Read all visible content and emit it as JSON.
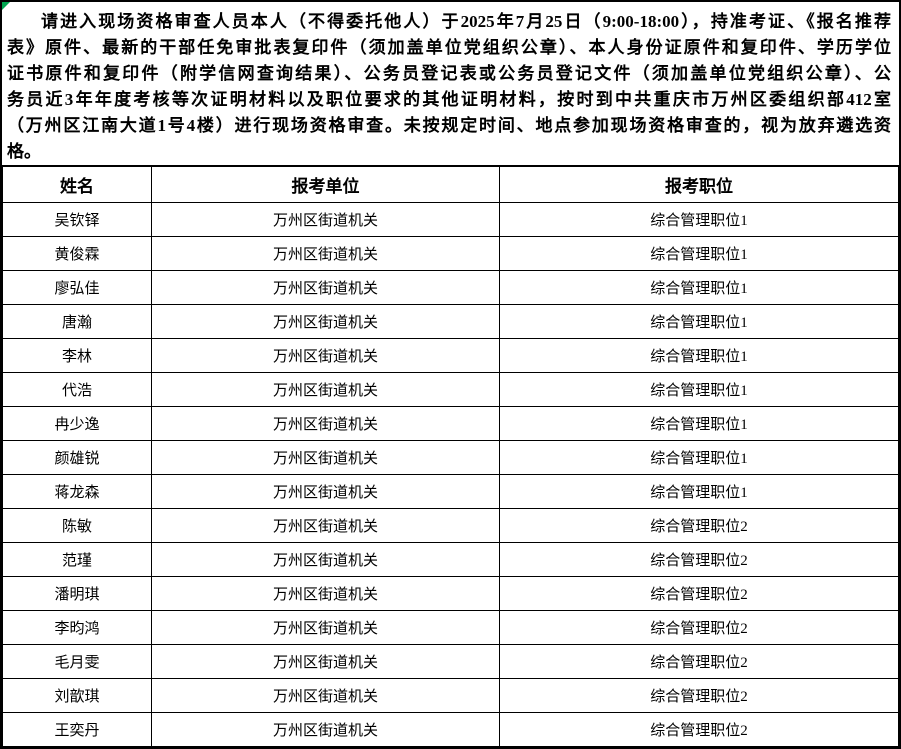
{
  "notice": {
    "lines": [
      "请进入现场资格审查人员本人（不得委托他人）于2025年7月25日（9:00-18:00），持准考证、《报名推荐",
      "表》原件、最新的干部任免审批表复印件（须加盖单位党组织公章）、本人身份证原件和复印件、学历学位",
      "证书原件和复印件（附学信网查询结果）、公务员登记表或公务员登记文件（须加盖单位党组织公章）、公",
      "务员近3年年度考核等次证明材料以及职位要求的其他证明材料，按时到中共重庆市万州区委组织部412室",
      "（万州区江南大道1号4楼）进行现场资格审查。未按规定时间、地点参加现场资格审查的，视为放弃遴选资",
      "格。"
    ]
  },
  "table": {
    "headers": [
      "姓名",
      "报考单位",
      "报考职位"
    ],
    "rows": [
      {
        "name": "吴钦铎",
        "unit": "万州区街道机关",
        "position": "综合管理职位1"
      },
      {
        "name": "黄俊霖",
        "unit": "万州区街道机关",
        "position": "综合管理职位1"
      },
      {
        "name": "廖弘佳",
        "unit": "万州区街道机关",
        "position": "综合管理职位1"
      },
      {
        "name": "唐瀚",
        "unit": "万州区街道机关",
        "position": "综合管理职位1"
      },
      {
        "name": "李林",
        "unit": "万州区街道机关",
        "position": "综合管理职位1"
      },
      {
        "name": "代浩",
        "unit": "万州区街道机关",
        "position": "综合管理职位1"
      },
      {
        "name": "冉少逸",
        "unit": "万州区街道机关",
        "position": "综合管理职位1"
      },
      {
        "name": "颜雄锐",
        "unit": "万州区街道机关",
        "position": "综合管理职位1"
      },
      {
        "name": "蒋龙森",
        "unit": "万州区街道机关",
        "position": "综合管理职位1"
      },
      {
        "name": "陈敏",
        "unit": "万州区街道机关",
        "position": "综合管理职位2"
      },
      {
        "name": "范瑾",
        "unit": "万州区街道机关",
        "position": "综合管理职位2"
      },
      {
        "name": "潘明琪",
        "unit": "万州区街道机关",
        "position": "综合管理职位2"
      },
      {
        "name": "李昀鸿",
        "unit": "万州区街道机关",
        "position": "综合管理职位2"
      },
      {
        "name": "毛月雯",
        "unit": "万州区街道机关",
        "position": "综合管理职位2"
      },
      {
        "name": "刘歆琪",
        "unit": "万州区街道机关",
        "position": "综合管理职位2"
      },
      {
        "name": "王奕丹",
        "unit": "万州区街道机关",
        "position": "综合管理职位2"
      }
    ]
  },
  "colors": {
    "border": "#000000",
    "text": "#000000",
    "background": "#ffffff",
    "corner_marker": "#00a650"
  }
}
